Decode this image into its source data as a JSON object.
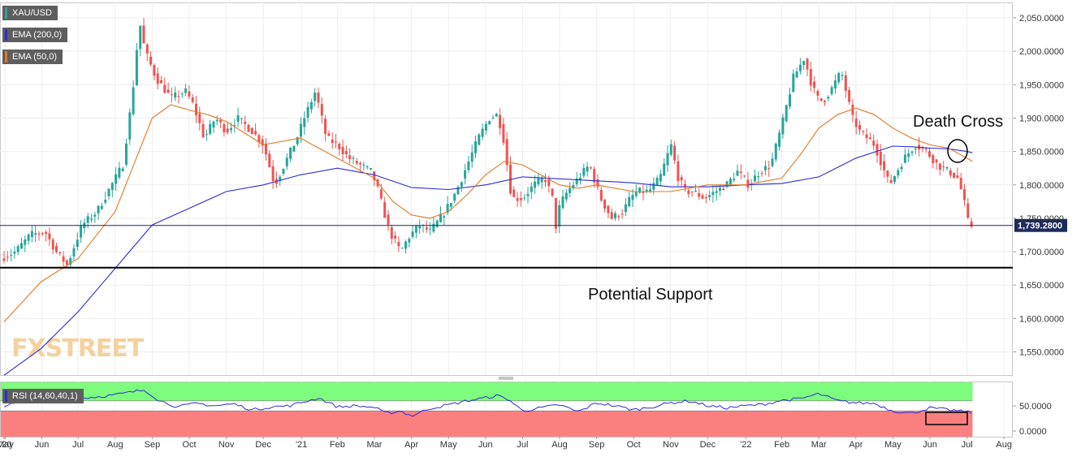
{
  "chart_data": [
    {
      "type": "candlestick",
      "symbol": "XAU/USD",
      "ylim": [
        1510,
        2075
      ],
      "ytick_labels": [
        "2,050.0000",
        "2,000.0000",
        "1,950.0000",
        "1,900.0000",
        "1,850.0000",
        "1,800.0000",
        "1,750.0000",
        "1,700.0000",
        "1,650.0000",
        "1,600.0000",
        "1,550.0000"
      ],
      "ytick_values": [
        2050,
        2000,
        1950,
        1900,
        1850,
        1800,
        1750,
        1700,
        1650,
        1600,
        1550
      ],
      "x_labels": [
        "'20",
        "May",
        "Jun",
        "Jul",
        "Aug",
        "Sep",
        "Oct",
        "Nov",
        "Dec",
        "'21",
        "Feb",
        "Mar",
        "Apr",
        "May",
        "Jun",
        "Jul",
        "Aug",
        "Sep",
        "Oct",
        "Nov",
        "Dec",
        "'22",
        "Feb",
        "Mar",
        "Apr",
        "May",
        "Jun",
        "Jul",
        "Aug"
      ],
      "x_months": [
        0,
        0.03,
        1.02,
        2.0,
        3.0,
        4.0,
        5.0,
        6.0,
        7.0,
        8.03,
        9.0,
        10.0,
        11.0,
        12.0,
        13.0,
        14.0,
        15.0,
        16.0,
        17.0,
        18.0,
        19.0,
        20.03,
        21.0,
        22.0,
        23.0,
        24.0,
        25.0,
        26.0,
        27.0
      ],
      "price_line": {
        "value": 1739.28,
        "label": "1,739.2800"
      },
      "support_level": 1676,
      "indicators": [
        {
          "name": "EMA (200,0)",
          "color": "#2c2cd8"
        },
        {
          "name": "EMA (50,0)",
          "color": "#e07826"
        }
      ],
      "price_series": {
        "x": [
          0,
          0.4,
          0.8,
          1.2,
          1.5,
          1.8,
          2.2,
          2.6,
          3.0,
          3.3,
          3.55,
          3.75,
          3.9,
          4.2,
          4.6,
          5.0,
          5.2,
          5.5,
          5.8,
          6.1,
          6.4,
          6.8,
          7.1,
          7.4,
          7.7,
          8.0,
          8.2,
          8.5,
          8.8,
          9.1,
          9.4,
          9.7,
          10.0,
          10.15,
          10.3,
          10.5,
          10.8,
          11.0,
          11.3,
          11.6,
          12.0,
          12.3,
          12.6,
          12.9,
          13.2,
          13.4,
          13.55,
          13.8,
          14.1,
          14.4,
          14.7,
          14.9,
          15.0,
          15.1,
          15.3,
          15.6,
          15.9,
          16.2,
          16.5,
          16.8,
          17.0,
          17.2,
          17.5,
          17.8,
          18.1,
          18.3,
          18.5,
          18.7,
          19.0,
          19.3,
          19.6,
          19.9,
          20.2,
          20.5,
          20.8,
          21.1,
          21.4,
          21.7,
          21.9,
          22.05,
          22.2,
          22.4,
          22.7,
          23.0,
          23.2,
          23.4,
          23.6,
          23.8,
          24.0,
          24.2,
          24.4,
          24.7,
          25.0,
          25.3,
          25.6,
          25.85,
          26.0,
          26.1,
          26.15
        ],
        "y": [
          1690,
          1700,
          1725,
          1730,
          1700,
          1680,
          1740,
          1760,
          1800,
          1830,
          1930,
          2045,
          2000,
          1960,
          1930,
          1940,
          1920,
          1870,
          1900,
          1880,
          1900,
          1880,
          1860,
          1800,
          1835,
          1870,
          1900,
          1940,
          1870,
          1860,
          1840,
          1830,
          1820,
          1800,
          1770,
          1730,
          1700,
          1720,
          1740,
          1730,
          1760,
          1790,
          1830,
          1870,
          1900,
          1905,
          1880,
          1780,
          1780,
          1800,
          1810,
          1780,
          1735,
          1770,
          1790,
          1810,
          1830,
          1780,
          1750,
          1760,
          1780,
          1790,
          1790,
          1810,
          1860,
          1810,
          1790,
          1790,
          1780,
          1790,
          1800,
          1820,
          1800,
          1820,
          1830,
          1890,
          1960,
          1990,
          1950,
          1930,
          1925,
          1940,
          1970,
          1900,
          1880,
          1870,
          1860,
          1830,
          1800,
          1820,
          1840,
          1860,
          1850,
          1830,
          1820,
          1810,
          1780,
          1750,
          1739
        ]
      },
      "ema200": {
        "x": [
          0,
          1,
          2,
          3,
          4,
          5,
          6,
          7,
          8,
          9,
          10,
          11,
          12,
          13,
          14,
          15,
          16,
          17,
          18,
          19,
          20,
          21,
          22,
          23,
          24,
          24.5,
          25,
          25.5,
          26,
          26.15
        ],
        "y": [
          1515,
          1555,
          1610,
          1675,
          1740,
          1765,
          1790,
          1800,
          1815,
          1825,
          1815,
          1796,
          1793,
          1800,
          1812,
          1809,
          1806,
          1803,
          1797,
          1797,
          1800,
          1802,
          1812,
          1840,
          1858,
          1857,
          1855,
          1854,
          1850,
          1848
        ]
      },
      "ema50": {
        "x": [
          0,
          1,
          2,
          3,
          3.5,
          4,
          4.5,
          5,
          5.5,
          6,
          7,
          8,
          8.5,
          9,
          10,
          10.5,
          11,
          11.5,
          12,
          12.5,
          13,
          13.5,
          14,
          15,
          15.5,
          16,
          17,
          18,
          19,
          20,
          20.5,
          21,
          21.5,
          22,
          22.5,
          23,
          23.5,
          24,
          24.5,
          25,
          25.5,
          26,
          26.15
        ],
        "y": [
          1595,
          1655,
          1690,
          1760,
          1830,
          1900,
          1920,
          1912,
          1905,
          1895,
          1860,
          1870,
          1855,
          1840,
          1810,
          1775,
          1755,
          1750,
          1760,
          1785,
          1815,
          1835,
          1830,
          1800,
          1795,
          1800,
          1790,
          1790,
          1800,
          1800,
          1805,
          1810,
          1845,
          1885,
          1905,
          1915,
          1905,
          1885,
          1870,
          1860,
          1855,
          1840,
          1835
        ]
      },
      "annotations": [
        "Death Cross",
        "Potential Support"
      ]
    },
    {
      "type": "line",
      "indicator": "RSI (14,60,40,1)",
      "ylim": [
        0,
        100
      ],
      "ytick_labels": [
        "50.0000",
        "0.0000"
      ],
      "ytick_values": [
        50,
        0
      ],
      "overbought_level": 60,
      "oversold_level": 40,
      "series": {
        "x": [
          0,
          0.5,
          1,
          1.5,
          2,
          2.5,
          3,
          3.5,
          3.8,
          4.2,
          4.7,
          5.2,
          5.7,
          6.2,
          6.7,
          7.2,
          7.7,
          8.2,
          8.5,
          9.0,
          9.5,
          10.0,
          10.3,
          10.7,
          11.0,
          11.5,
          12.0,
          12.5,
          13.0,
          13.3,
          13.6,
          14.0,
          14.5,
          15.0,
          15.5,
          16.0,
          16.5,
          17.0,
          17.5,
          18.0,
          18.5,
          19.0,
          19.5,
          20.0,
          20.5,
          21.0,
          21.5,
          22.0,
          22.5,
          23.0,
          23.5,
          24.0,
          24.5,
          25.0,
          25.5,
          26.0,
          26.15
        ],
        "y": [
          50,
          58,
          63,
          62,
          65,
          68,
          72,
          78,
          82,
          60,
          48,
          55,
          50,
          54,
          42,
          48,
          50,
          60,
          66,
          48,
          50,
          47,
          35,
          40,
          30,
          45,
          52,
          60,
          66,
          70,
          64,
          40,
          46,
          52,
          38,
          56,
          50,
          42,
          48,
          56,
          60,
          50,
          46,
          50,
          53,
          61,
          64,
          74,
          60,
          56,
          55,
          40,
          35,
          46,
          42,
          38,
          37
        ]
      },
      "highlight_zone": "Jun–Jul"
    }
  ],
  "header": {
    "symbol_label": "XAU/USD",
    "ema200_label": "EMA (200,0)",
    "ema50_label": "EMA (50,0)",
    "rsi_label": "RSI (14,60,40,1)"
  },
  "annotations": {
    "death_cross": "Death Cross",
    "potential_support": "Potential Support"
  },
  "watermark": "FXSTREET",
  "colors": {
    "bull": "#26a69a",
    "bear": "#ef5350",
    "ema200": "#2c2cd8",
    "ema50": "#e07826",
    "rsi_line": "#2c2cd8",
    "rsi_upper_fill": "#7dfc7d",
    "rsi_lower_fill": "#fa8080",
    "price_label_bg": "#1d2a5a"
  }
}
